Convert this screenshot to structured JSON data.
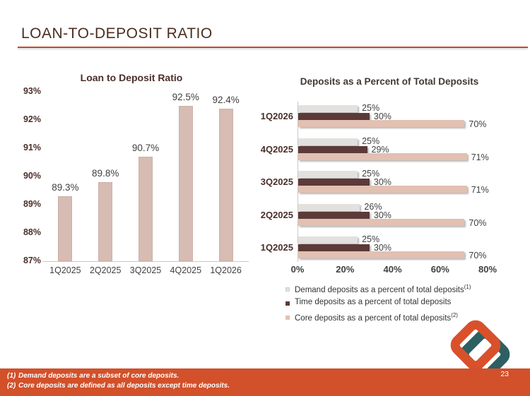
{
  "slide": {
    "title": "LOAN-TO-DEPOSIT RATIO",
    "page_number": "23",
    "accent_color": "#bf4b2b",
    "footer_color": "#d2502a",
    "footnotes": [
      {
        "marker": "(1)",
        "text": "Demand deposits are a subset of core deposits."
      },
      {
        "marker": "(2)",
        "text": "Core deposits are defined as all deposits except time deposits."
      }
    ],
    "logo_colors": {
      "orange": "#d8512b",
      "teal": "#2d5f63"
    }
  },
  "chart_data": [
    {
      "type": "bar",
      "title": "Loan to Deposit Ratio",
      "categories": [
        "1Q2025",
        "2Q2025",
        "3Q2025",
        "4Q2025",
        "1Q2026"
      ],
      "values": [
        89.3,
        89.8,
        90.7,
        92.5,
        92.4
      ],
      "data_labels": [
        "89.3%",
        "89.8%",
        "90.7%",
        "92.5%",
        "92.4%"
      ],
      "ylim": [
        87,
        93
      ],
      "yticks": [
        "93%",
        "92%",
        "91%",
        "90%",
        "89%",
        "88%",
        "87%"
      ],
      "bar_color": "#d6bcb3",
      "grid": false,
      "legend_position": "none"
    },
    {
      "type": "bar-horizontal",
      "title": "Deposits as a Percent of Total Deposits",
      "categories": [
        "1Q2026",
        "4Q2025",
        "3Q2025",
        "2Q2025",
        "1Q2025"
      ],
      "series": [
        {
          "name": "Demand deposits as a percent of total deposits",
          "superscript": "(1)",
          "color": "#e2e1df",
          "values": [
            25,
            25,
            25,
            26,
            25
          ]
        },
        {
          "name": "Time deposits as a percent of total deposits",
          "superscript": "",
          "color": "#5c3a38",
          "values": [
            30,
            29,
            30,
            30,
            30
          ]
        },
        {
          "name": "Core deposits as a percent of total deposits",
          "superscript": "(2)",
          "color": "#e2c0b2",
          "values": [
            70,
            71,
            71,
            70,
            70
          ]
        }
      ],
      "xlim": [
        0,
        80
      ],
      "xticks": [
        "0%",
        "20%",
        "40%",
        "60%",
        "80%"
      ],
      "grid": false,
      "legend_position": "bottom"
    }
  ]
}
